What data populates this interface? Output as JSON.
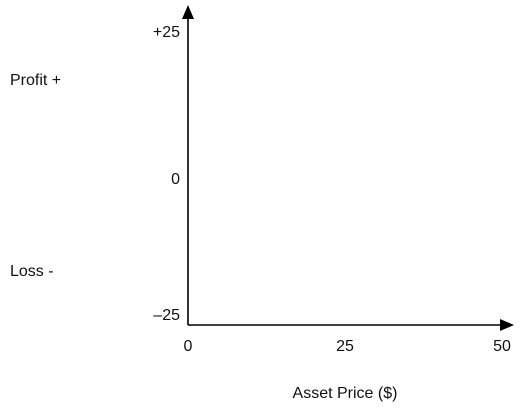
{
  "chart_data": {
    "type": "line",
    "title": "",
    "xlabel": "Asset Price ($)",
    "ylabel": "",
    "side_labels": {
      "profit": "Profit +",
      "loss": "Loss -"
    },
    "xlim": [
      0,
      50
    ],
    "ylim": [
      -25,
      25
    ],
    "x_ticks": [
      {
        "value": 0,
        "label": "0"
      },
      {
        "value": 25,
        "label": "25"
      },
      {
        "value": 50,
        "label": "50"
      }
    ],
    "y_ticks": [
      {
        "value": 25,
        "label": "+25"
      },
      {
        "value": 0,
        "label": "0"
      },
      {
        "value": -25,
        "label": "–25"
      }
    ],
    "series": [],
    "grid": false,
    "legend": "none"
  }
}
